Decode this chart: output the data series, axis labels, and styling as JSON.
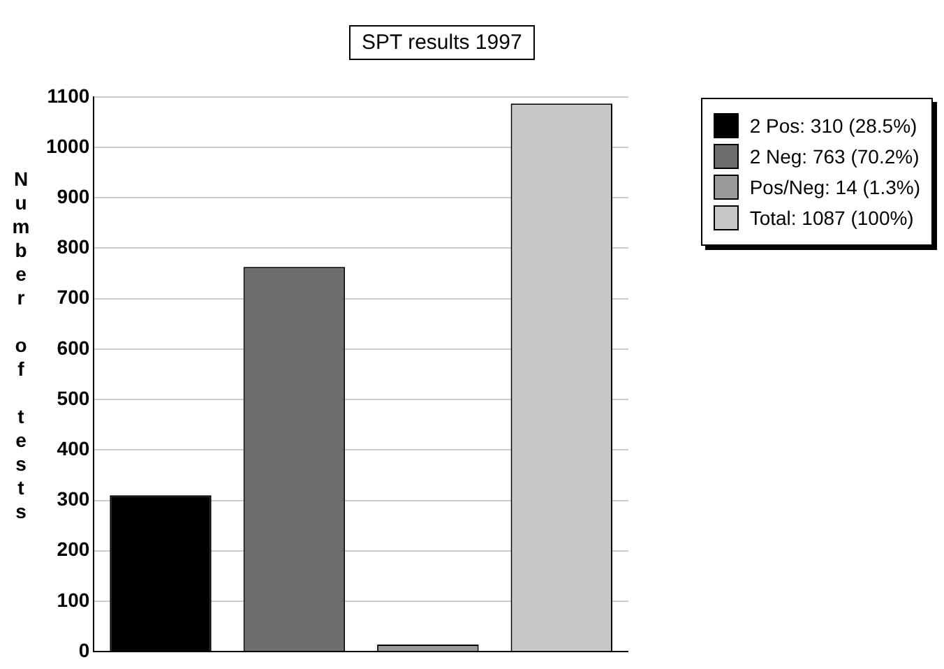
{
  "chart_data": {
    "type": "bar",
    "title": "SPT results 1997",
    "ylabel": "Number of tests",
    "categories": [
      null,
      null,
      null,
      null
    ],
    "series": [
      {
        "name": "2 Pos: 310 (28.5%)",
        "color": "#000000",
        "values": [
          310,
          null,
          null,
          null
        ]
      },
      {
        "name": "2 Neg: 763 (70.2%)",
        "color": "#6e6e6e",
        "values": [
          null,
          763,
          null,
          null
        ]
      },
      {
        "name": "Pos/Neg: 14 (1.3%)",
        "color": "#9a9a9a",
        "values": [
          null,
          null,
          14,
          null
        ]
      },
      {
        "name": "Total: 1087 (100%)",
        "color": "#c8c8c8",
        "values": [
          null,
          null,
          null,
          1087
        ]
      }
    ],
    "ylim": [
      0,
      1100
    ],
    "yticks": [
      0,
      100,
      200,
      300,
      400,
      500,
      600,
      700,
      800,
      900,
      1000,
      1100
    ],
    "grid": "y",
    "legend": "top right"
  }
}
